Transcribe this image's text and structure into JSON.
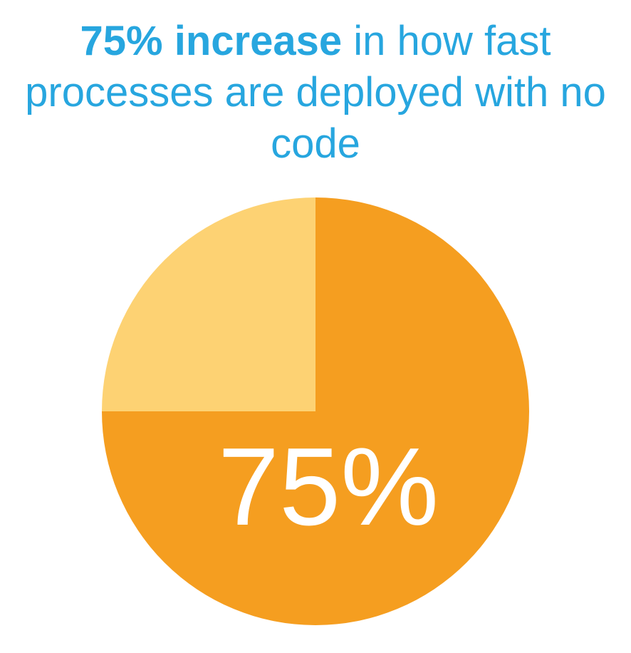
{
  "chart_data": {
    "type": "pie",
    "title_emphasis": "75% increase",
    "title": "in how fast processes are deployed with no code",
    "values": [
      75,
      25
    ],
    "value_labels": [
      "75%",
      null
    ],
    "colors": [
      "#f59e20",
      "#fdd273"
    ],
    "title_color": "#27a6df",
    "label_color": "#ffffff"
  }
}
